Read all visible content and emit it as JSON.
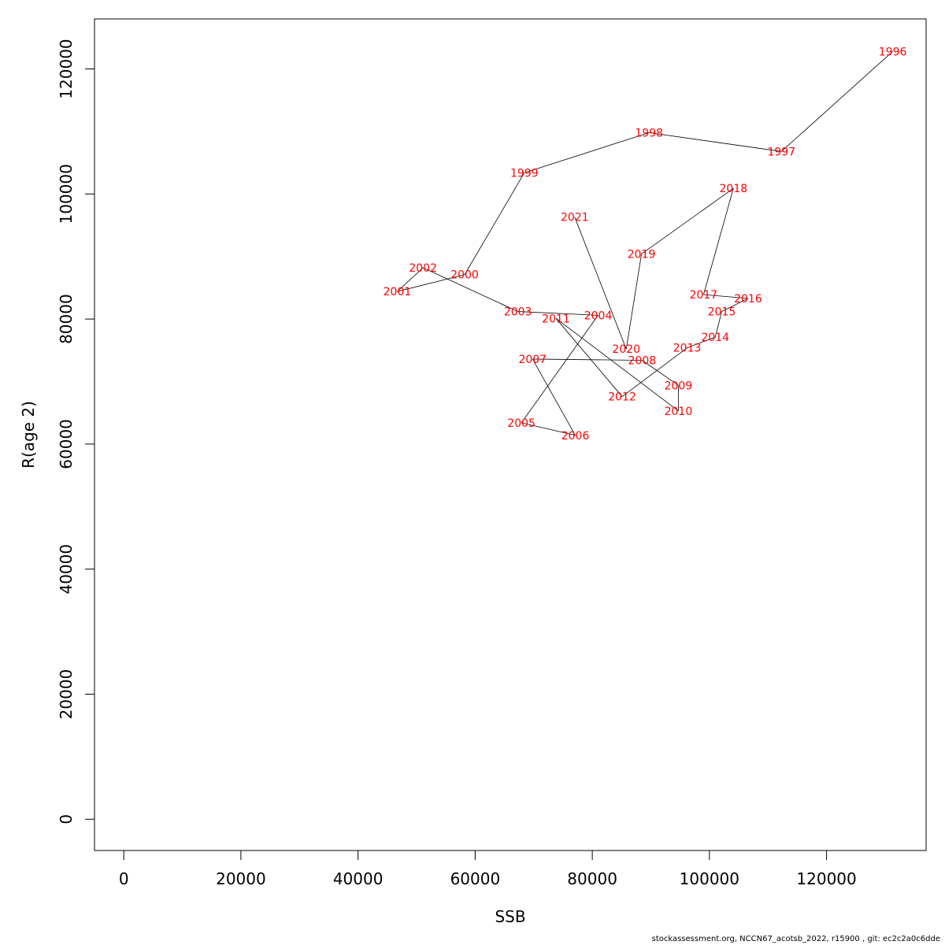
{
  "chart_data": {
    "type": "line",
    "xlabel": "SSB",
    "ylabel": "R(age 2)",
    "xlim": [
      -5000,
      137000
    ],
    "ylim": [
      -5000,
      128000
    ],
    "x_ticks": [
      0,
      20000,
      40000,
      60000,
      80000,
      100000,
      120000
    ],
    "y_ticks": [
      0,
      20000,
      40000,
      60000,
      80000,
      100000,
      120000
    ],
    "grid": false,
    "line_color": "#000000",
    "label_color": "#ff0000",
    "points": [
      {
        "label": "1996",
        "x": 131300,
        "y": 122800
      },
      {
        "label": "1997",
        "x": 112300,
        "y": 106800
      },
      {
        "label": "1998",
        "x": 89700,
        "y": 109800
      },
      {
        "label": "1999",
        "x": 68400,
        "y": 103400
      },
      {
        "label": "2000",
        "x": 58200,
        "y": 87100
      },
      {
        "label": "2001",
        "x": 46700,
        "y": 84400
      },
      {
        "label": "2002",
        "x": 51100,
        "y": 88200
      },
      {
        "label": "2003",
        "x": 67300,
        "y": 81200
      },
      {
        "label": "2004",
        "x": 81000,
        "y": 80600
      },
      {
        "label": "2005",
        "x": 67900,
        "y": 63400
      },
      {
        "label": "2006",
        "x": 77100,
        "y": 61400
      },
      {
        "label": "2007",
        "x": 69800,
        "y": 73600
      },
      {
        "label": "2008",
        "x": 88500,
        "y": 73400
      },
      {
        "label": "2009",
        "x": 94700,
        "y": 69400
      },
      {
        "label": "2010",
        "x": 94700,
        "y": 65300
      },
      {
        "label": "2011",
        "x": 73800,
        "y": 80100
      },
      {
        "label": "2012",
        "x": 85100,
        "y": 67600
      },
      {
        "label": "2013",
        "x": 96200,
        "y": 75400
      },
      {
        "label": "2014",
        "x": 101000,
        "y": 77100
      },
      {
        "label": "2015",
        "x": 102100,
        "y": 81200
      },
      {
        "label": "2016",
        "x": 106600,
        "y": 83300
      },
      {
        "label": "2017",
        "x": 99000,
        "y": 83900
      },
      {
        "label": "2018",
        "x": 104100,
        "y": 100900
      },
      {
        "label": "2019",
        "x": 88400,
        "y": 90400
      },
      {
        "label": "2020",
        "x": 85800,
        "y": 75200
      },
      {
        "label": "2021",
        "x": 77000,
        "y": 96300
      }
    ]
  },
  "footer": "stockassessment.org, NCCN67_acotsb_2022, r15900 , git: ec2c2a0c6dde"
}
